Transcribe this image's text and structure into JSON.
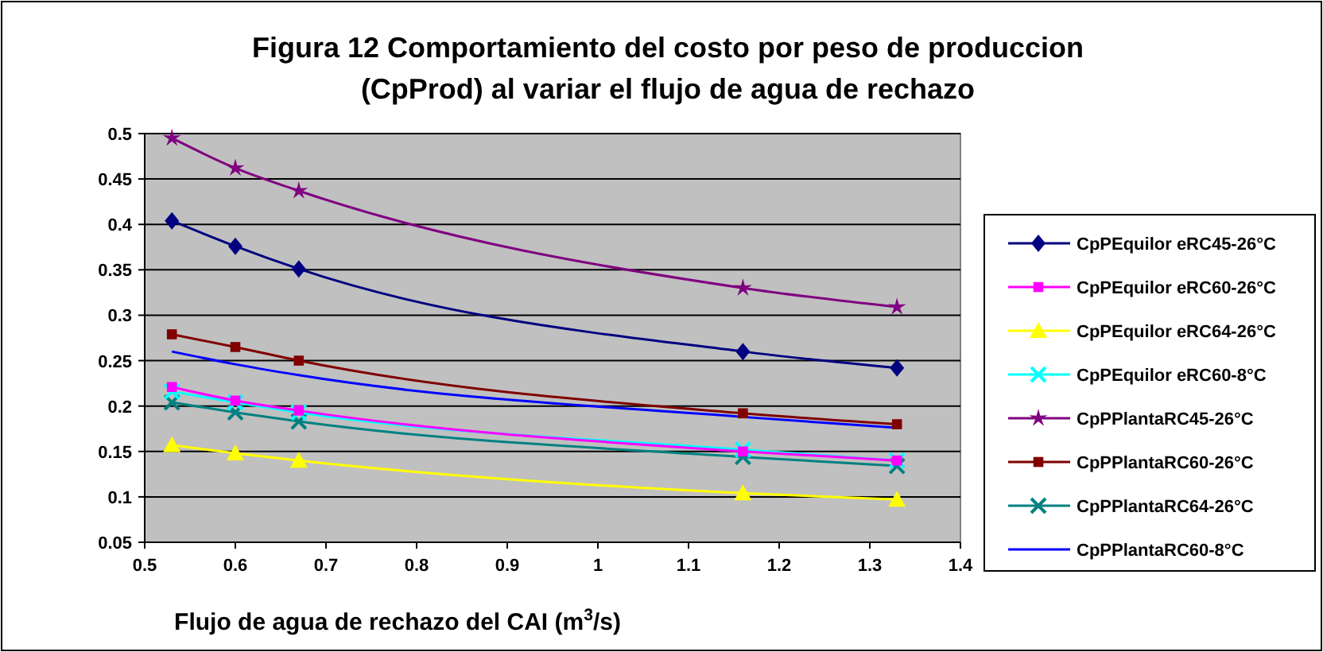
{
  "chart_data": {
    "type": "line",
    "title": "Figura 12 Comportamiento del costo por peso de produccion\n(CpProd)  al variar el flujo de agua de rechazo",
    "xlabel": "Flujo de agua de rechazo del CAI (m$^{3}$/s)",
    "x": [
      0.53,
      0.6,
      0.67,
      1.16,
      1.33
    ],
    "xlim": [
      0.5,
      1.4
    ],
    "xticks": [
      0.5,
      0.6,
      0.7,
      0.8,
      0.9,
      1,
      1.1,
      1.2,
      1.3,
      1.4
    ],
    "ylim": [
      0.05,
      0.5
    ],
    "yticks": [
      0.05,
      0.1,
      0.15,
      0.2,
      0.25,
      0.3,
      0.35,
      0.4,
      0.45,
      0.5
    ],
    "grid": "y",
    "legend": "right",
    "series": [
      {
        "name": "CpPEquilor eRC45-26°C",
        "color": "#000080",
        "marker": "diamond",
        "values": [
          0.404,
          0.376,
          0.351,
          0.26,
          0.242
        ]
      },
      {
        "name": "CpPEquilor eRC60-26°C",
        "color": "#ff00ff",
        "marker": "square",
        "values": [
          0.221,
          0.206,
          0.195,
          0.15,
          0.14
        ]
      },
      {
        "name": "CpPEquilor eRC64-26°C",
        "color": "#ffff00",
        "marker": "triangle",
        "values": [
          0.157,
          0.148,
          0.14,
          0.104,
          0.097
        ]
      },
      {
        "name": "CpPEquilor eRC60-8°C",
        "color": "#00ffff",
        "marker": "cross",
        "values": [
          0.216,
          0.204,
          0.193,
          0.152,
          0.14
        ]
      },
      {
        "name": "CpPPlantaRC45-26°C",
        "color": "#800080",
        "marker": "star",
        "values": [
          0.495,
          0.462,
          0.437,
          0.33,
          0.309
        ]
      },
      {
        "name": "CpPPlantaRC60-26°C",
        "color": "#800000",
        "marker": "square",
        "values": [
          0.279,
          0.265,
          0.25,
          0.192,
          0.18
        ]
      },
      {
        "name": "CpPPlantaRC64-26°C",
        "color": "#008080",
        "marker": "cross",
        "values": [
          0.204,
          0.193,
          0.183,
          0.144,
          0.134
        ]
      },
      {
        "name": "CpPPlantaRC60-8°C",
        "color": "#0000ff",
        "marker": "none",
        "values": [
          0.26,
          0.246,
          0.234,
          0.188,
          0.176
        ]
      }
    ]
  }
}
